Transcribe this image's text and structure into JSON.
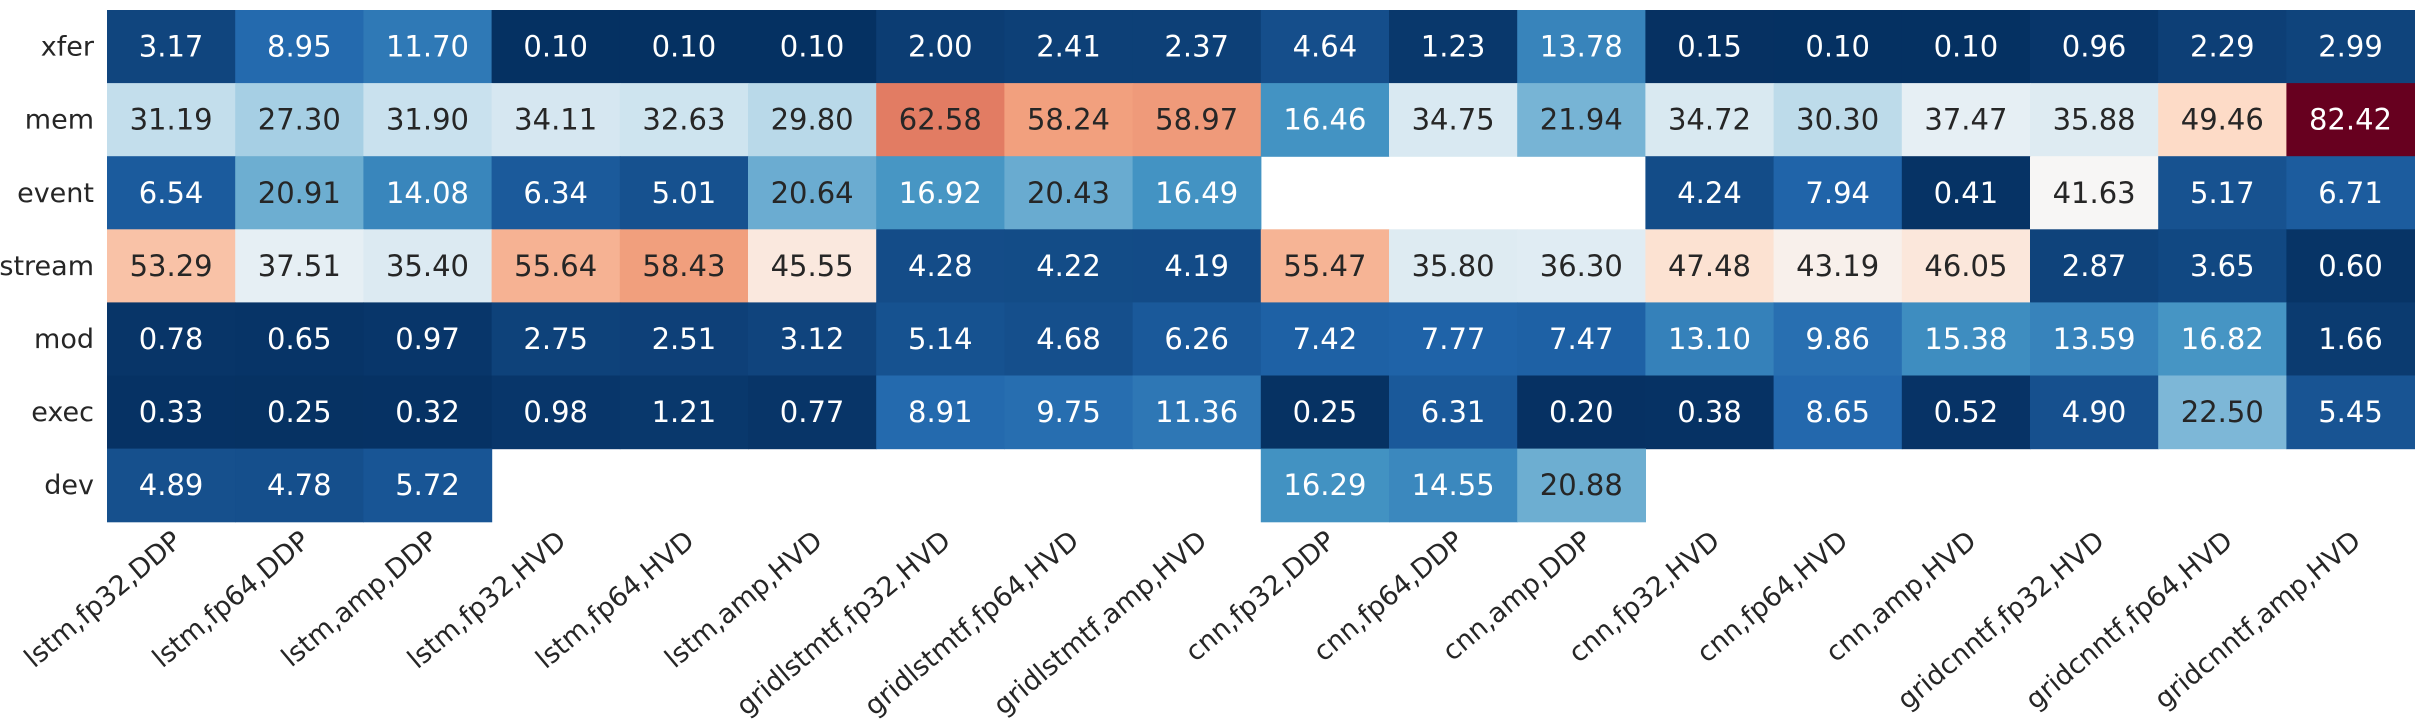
{
  "chart_data": {
    "type": "heatmap",
    "title": "",
    "xlabel": "",
    "ylabel": "",
    "x_categories": [
      "lstm,fp32,DDP",
      "lstm,fp64,DDP",
      "lstm,amp,DDP",
      "lstm,fp32,HVD",
      "lstm,fp64,HVD",
      "lstm,amp,HVD",
      "gridlstmtf,fp32,HVD",
      "gridlstmtf,fp64,HVD",
      "gridlstmtf,amp,HVD",
      "cnn,fp32,DDP",
      "cnn,fp64,DDP",
      "cnn,amp,DDP",
      "cnn,fp32,HVD",
      "cnn,fp64,HVD",
      "cnn,amp,HVD",
      "gridcnntf,fp32,HVD",
      "gridcnntf,fp64,HVD",
      "gridcnntf,amp,HVD"
    ],
    "y_categories": [
      "xfer",
      "mem",
      "event",
      "stream",
      "mod",
      "exec",
      "dev"
    ],
    "values": [
      [
        3.17,
        8.95,
        11.7,
        0.1,
        0.1,
        0.1,
        2.0,
        2.41,
        2.37,
        4.64,
        1.23,
        13.78,
        0.15,
        0.1,
        0.1,
        0.96,
        2.29,
        2.99
      ],
      [
        31.19,
        27.3,
        31.9,
        34.11,
        32.63,
        29.8,
        62.58,
        58.24,
        58.97,
        16.46,
        34.75,
        21.94,
        34.72,
        30.3,
        37.47,
        35.88,
        49.46,
        82.42
      ],
      [
        6.54,
        20.91,
        14.08,
        6.34,
        5.01,
        20.64,
        16.92,
        20.43,
        16.49,
        null,
        null,
        null,
        4.24,
        7.94,
        0.41,
        41.63,
        5.17,
        6.71
      ],
      [
        53.29,
        37.51,
        35.4,
        55.64,
        58.43,
        45.55,
        4.28,
        4.22,
        4.19,
        55.47,
        35.8,
        36.3,
        47.48,
        43.19,
        46.05,
        2.87,
        3.65,
        0.6
      ],
      [
        0.78,
        0.65,
        0.97,
        2.75,
        2.51,
        3.12,
        5.14,
        4.68,
        6.26,
        7.42,
        7.77,
        7.47,
        13.1,
        9.86,
        15.38,
        13.59,
        16.82,
        1.66
      ],
      [
        0.33,
        0.25,
        0.32,
        0.98,
        1.21,
        0.77,
        8.91,
        9.75,
        11.36,
        0.25,
        6.31,
        0.2,
        0.38,
        8.65,
        0.52,
        4.9,
        22.5,
        5.45
      ],
      [
        4.89,
        4.78,
        5.72,
        null,
        null,
        null,
        null,
        null,
        null,
        16.29,
        14.55,
        20.88,
        null,
        null,
        null,
        null,
        null,
        null
      ]
    ],
    "colormap": "RdBu_r",
    "value_range": [
      0,
      82.42
    ],
    "show_colorbar": false,
    "cell_labels": true,
    "missing_color": "#ffffff"
  }
}
